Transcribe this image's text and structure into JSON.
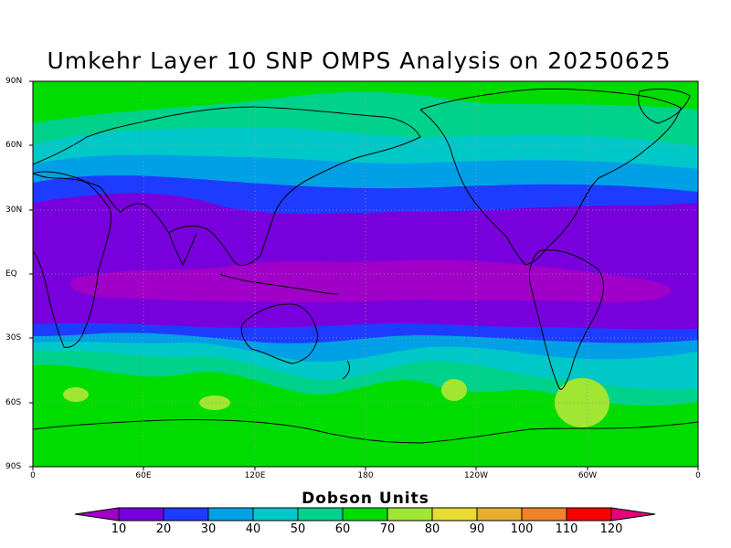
{
  "title": "Umkehr Layer 10 SNP OMPS Analysis on 20250625",
  "units_label": "Dobson Units",
  "lat_labels": [
    "90N",
    "60N",
    "30N",
    "EQ",
    "30S",
    "60S",
    "90S"
  ],
  "lon_labels": [
    "0",
    "60E",
    "120E",
    "180",
    "120W",
    "60W",
    "0"
  ],
  "colorbar": {
    "labels": [
      "10",
      "20",
      "30",
      "40",
      "50",
      "60",
      "70",
      "80",
      "90",
      "100",
      "110",
      "120"
    ],
    "colors": [
      "#a000c8",
      "#7800dc",
      "#1e3cff",
      "#00a0e6",
      "#00c8c8",
      "#00d28c",
      "#00dc00",
      "#a0e632",
      "#e6dc32",
      "#e6af2d",
      "#f08228",
      "#fa0000",
      "#e6007a"
    ]
  },
  "fill_colors": {
    "band_60_70": "#00dc00",
    "band_50_60": "#00d28c",
    "band_40_50": "#00c8c8",
    "band_30_40": "#00a0e6",
    "band_20_30": "#1e3cff",
    "band_10_20": "#7800dc",
    "band_lt_10": "#a000c8",
    "band_70_80": "#a0e632"
  }
}
